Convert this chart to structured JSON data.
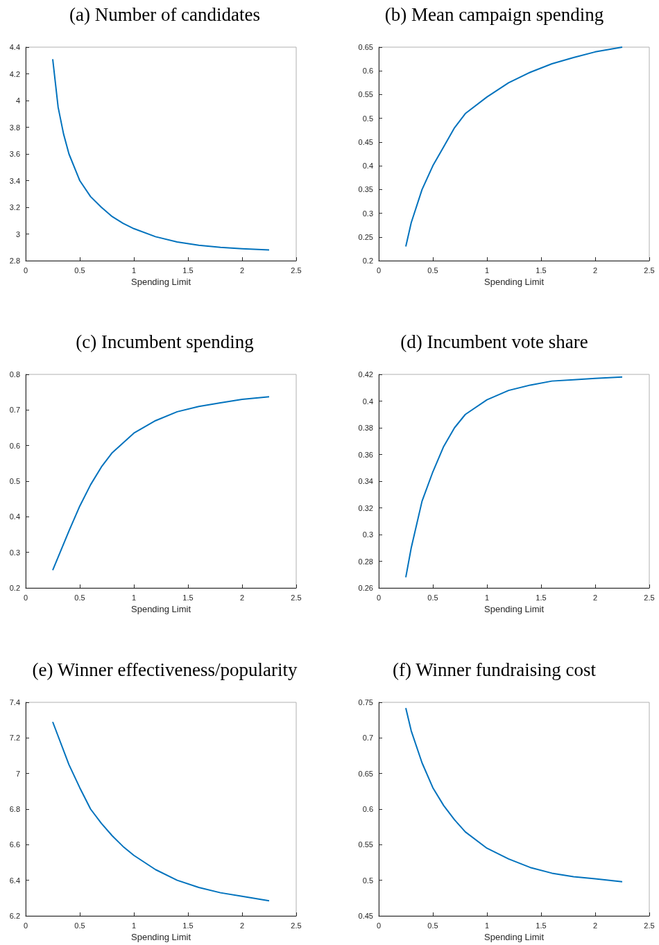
{
  "chart_data": [
    {
      "type": "line",
      "title": "(a) Number of candidates",
      "xlabel": "Spending Limit",
      "color": "#0072bd",
      "xlim": [
        0,
        2.5
      ],
      "xticks": [
        0,
        0.5,
        1,
        1.5,
        2,
        2.5
      ],
      "ylim": [
        2.8,
        4.4
      ],
      "yticks": [
        2.8,
        3,
        3.2,
        3.4,
        3.6,
        3.8,
        4,
        4.2,
        4.4
      ],
      "x": [
        0.25,
        0.3,
        0.35,
        0.4,
        0.5,
        0.6,
        0.7,
        0.8,
        0.9,
        1,
        1.2,
        1.4,
        1.6,
        1.8,
        2,
        2.25
      ],
      "values": [
        4.31,
        3.95,
        3.75,
        3.6,
        3.4,
        3.28,
        3.2,
        3.13,
        3.08,
        3.04,
        2.98,
        2.94,
        2.915,
        2.9,
        2.89,
        2.88
      ]
    },
    {
      "type": "line",
      "title": "(b) Mean campaign spending",
      "xlabel": "Spending Limit",
      "color": "#0072bd",
      "xlim": [
        0,
        2.5
      ],
      "xticks": [
        0,
        0.5,
        1,
        1.5,
        2,
        2.5
      ],
      "ylim": [
        0.2,
        0.65
      ],
      "yticks": [
        0.2,
        0.25,
        0.3,
        0.35,
        0.4,
        0.45,
        0.5,
        0.55,
        0.6,
        0.65
      ],
      "x": [
        0.25,
        0.3,
        0.4,
        0.5,
        0.6,
        0.7,
        0.8,
        1,
        1.2,
        1.4,
        1.6,
        1.8,
        2,
        2.25
      ],
      "values": [
        0.23,
        0.28,
        0.35,
        0.4,
        0.44,
        0.48,
        0.51,
        0.545,
        0.575,
        0.597,
        0.615,
        0.628,
        0.64,
        0.65
      ]
    },
    {
      "type": "line",
      "title": "(c) Incumbent spending",
      "xlabel": "Spending Limit",
      "color": "#0072bd",
      "xlim": [
        0,
        2.5
      ],
      "xticks": [
        0,
        0.5,
        1,
        1.5,
        2,
        2.5
      ],
      "ylim": [
        0.2,
        0.8
      ],
      "yticks": [
        0.2,
        0.3,
        0.4,
        0.5,
        0.6,
        0.7,
        0.8
      ],
      "x": [
        0.25,
        0.4,
        0.5,
        0.6,
        0.7,
        0.8,
        1,
        1.2,
        1.4,
        1.6,
        1.8,
        2,
        2.25
      ],
      "values": [
        0.25,
        0.36,
        0.43,
        0.49,
        0.54,
        0.58,
        0.635,
        0.67,
        0.695,
        0.71,
        0.72,
        0.73,
        0.737
      ]
    },
    {
      "type": "line",
      "title": "(d) Incumbent vote share",
      "xlabel": "Spending Limit",
      "color": "#0072bd",
      "xlim": [
        0,
        2.5
      ],
      "xticks": [
        0,
        0.5,
        1,
        1.5,
        2,
        2.5
      ],
      "ylim": [
        0.26,
        0.42
      ],
      "yticks": [
        0.26,
        0.28,
        0.3,
        0.32,
        0.34,
        0.36,
        0.38,
        0.4,
        0.42
      ],
      "x": [
        0.25,
        0.3,
        0.4,
        0.5,
        0.6,
        0.7,
        0.8,
        1,
        1.2,
        1.4,
        1.6,
        1.8,
        2,
        2.25
      ],
      "values": [
        0.268,
        0.29,
        0.325,
        0.347,
        0.366,
        0.38,
        0.39,
        0.401,
        0.408,
        0.412,
        0.415,
        0.416,
        0.417,
        0.418
      ]
    },
    {
      "type": "line",
      "title": "(e) Winner effectiveness/popularity",
      "xlabel": "Spending Limit",
      "color": "#0072bd",
      "xlim": [
        0,
        2.5
      ],
      "xticks": [
        0,
        0.5,
        1,
        1.5,
        2,
        2.5
      ],
      "ylim": [
        6.2,
        7.4
      ],
      "yticks": [
        6.2,
        6.4,
        6.6,
        6.8,
        7,
        7.2,
        7.4
      ],
      "x": [
        0.25,
        0.4,
        0.5,
        0.6,
        0.7,
        0.8,
        0.9,
        1,
        1.2,
        1.4,
        1.6,
        1.8,
        2,
        2.25
      ],
      "values": [
        7.29,
        7.05,
        6.92,
        6.8,
        6.72,
        6.65,
        6.59,
        6.54,
        6.46,
        6.4,
        6.36,
        6.33,
        6.31,
        6.285
      ]
    },
    {
      "type": "line",
      "title": "(f) Winner fundraising cost",
      "xlabel": "Spending Limit",
      "color": "#0072bd",
      "xlim": [
        0,
        2.5
      ],
      "xticks": [
        0,
        0.5,
        1,
        1.5,
        2,
        2.5
      ],
      "ylim": [
        0.45,
        0.75
      ],
      "yticks": [
        0.45,
        0.5,
        0.55,
        0.6,
        0.65,
        0.7,
        0.75
      ],
      "x": [
        0.25,
        0.3,
        0.4,
        0.5,
        0.6,
        0.7,
        0.8,
        1,
        1.2,
        1.4,
        1.6,
        1.8,
        2,
        2.25
      ],
      "values": [
        0.742,
        0.71,
        0.665,
        0.63,
        0.605,
        0.585,
        0.568,
        0.545,
        0.53,
        0.518,
        0.51,
        0.505,
        0.502,
        0.498
      ]
    }
  ]
}
